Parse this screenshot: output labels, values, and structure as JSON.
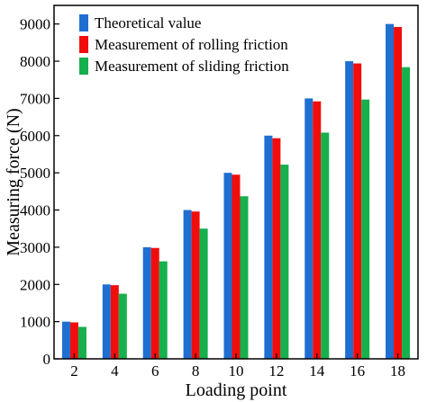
{
  "chart_data": {
    "type": "bar",
    "xlabel": "Loading point",
    "ylabel": "Measuring force (N)",
    "categories": [
      "2",
      "4",
      "6",
      "8",
      "10",
      "12",
      "14",
      "16",
      "18"
    ],
    "ylim": [
      0,
      9500
    ],
    "yticks": [
      0,
      1000,
      2000,
      3000,
      4000,
      5000,
      6000,
      7000,
      8000,
      9000
    ],
    "grid": false,
    "legend_position": "top-left",
    "series": [
      {
        "name": "Theoretical value",
        "color": "#1f6fd1",
        "values": [
          1000,
          2000,
          3000,
          4000,
          5000,
          6000,
          7000,
          8000,
          9000
        ]
      },
      {
        "name": "Measurement of rolling friction",
        "color": "#f20d0d",
        "values": [
          980,
          1980,
          2980,
          3960,
          4950,
          5930,
          6920,
          7940,
          8920
        ]
      },
      {
        "name": "Measurement of sliding friction",
        "color": "#16b04c",
        "values": [
          860,
          1750,
          2620,
          3500,
          4370,
          5220,
          6080,
          6970,
          7840
        ]
      }
    ]
  }
}
